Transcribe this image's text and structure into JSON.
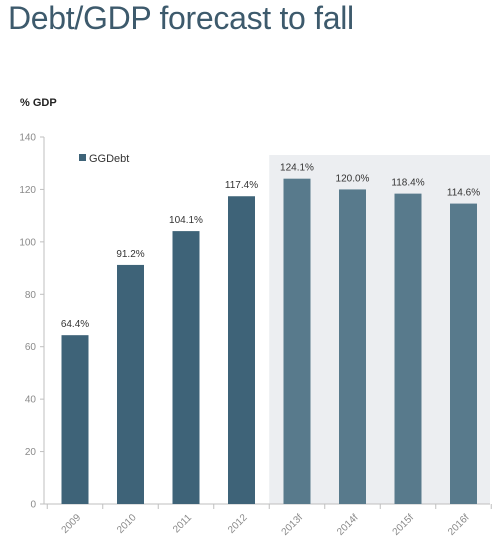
{
  "title": "Debt/GDP forecast to fall",
  "chart_data": {
    "type": "bar",
    "ylabel": "% GDP",
    "categories": [
      "2009",
      "2010",
      "2011",
      "2012",
      "2013f",
      "2014f",
      "2015f",
      "2016f"
    ],
    "series": [
      {
        "name": "GGDebt",
        "values": [
          64.4,
          91.2,
          104.1,
          117.4,
          124.1,
          120.0,
          118.4,
          114.6
        ],
        "data_labels": [
          "64.4%",
          "91.2%",
          "104.1%",
          "117.4%",
          "124.1%",
          "120.0%",
          "118.4%",
          "114.6%"
        ]
      }
    ],
    "ylim": [
      0,
      140
    ],
    "yticks": [
      0,
      20,
      40,
      60,
      80,
      100,
      120,
      140
    ],
    "forecast_start_index": 4,
    "legend_placement": "top-left",
    "grid": false,
    "colors": {
      "actual": "#3e6378",
      "forecast": "#587a8c",
      "forecast_shade": "#eceef1",
      "axis": "#bfbfbf"
    }
  }
}
